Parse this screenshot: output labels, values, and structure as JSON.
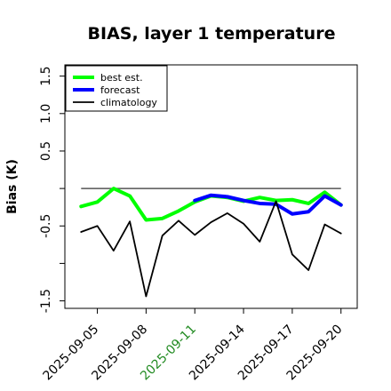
{
  "chart_data": {
    "type": "line",
    "title": "BIAS, layer 1 temperature",
    "ylabel": "Bias (K)",
    "xlabel": "",
    "ylim": [
      -1.6,
      1.65
    ],
    "xlim": [
      "2025-09-03",
      "2025-09-21"
    ],
    "yticks": [
      -1.5,
      -1.0,
      -0.5,
      0.0,
      0.5,
      1.0,
      1.5
    ],
    "yticklabels": [
      "-1.5",
      "",
      "-0.5",
      "",
      "0.5",
      "1.0",
      "1.5"
    ],
    "xticks": [
      "2025-09-05",
      "2025-09-08",
      "2025-09-11",
      "2025-09-14",
      "2025-09-17",
      "2025-09-20"
    ],
    "highlight_tick": "2025-09-11",
    "highlight_color": "#228b22",
    "reference_line": 0.0,
    "legend": {
      "position": "top-left"
    },
    "series": [
      {
        "name": "best est.",
        "color": "#00ff00",
        "x": [
          "2025-09-04",
          "2025-09-05",
          "2025-09-06",
          "2025-09-07",
          "2025-09-08",
          "2025-09-09",
          "2025-09-10",
          "2025-09-11",
          "2025-09-12",
          "2025-09-13",
          "2025-09-14",
          "2025-09-15",
          "2025-09-16",
          "2025-09-17",
          "2025-09-18",
          "2025-09-19",
          "2025-09-20"
        ],
        "y": [
          -0.24,
          -0.18,
          0.0,
          -0.1,
          -0.42,
          -0.4,
          -0.3,
          -0.18,
          -0.1,
          -0.12,
          -0.17,
          -0.12,
          -0.16,
          -0.15,
          -0.2,
          -0.05,
          -0.22
        ]
      },
      {
        "name": "forecast",
        "color": "#0000ff",
        "x": [
          "2025-09-11",
          "2025-09-12",
          "2025-09-13",
          "2025-09-14",
          "2025-09-15",
          "2025-09-16",
          "2025-09-17",
          "2025-09-18",
          "2025-09-19",
          "2025-09-20"
        ],
        "y": [
          -0.16,
          -0.09,
          -0.11,
          -0.16,
          -0.2,
          -0.21,
          -0.34,
          -0.31,
          -0.1,
          -0.22
        ]
      },
      {
        "name": "climatology",
        "color": "#000000",
        "x": [
          "2025-09-04",
          "2025-09-05",
          "2025-09-06",
          "2025-09-07",
          "2025-09-08",
          "2025-09-09",
          "2025-09-10",
          "2025-09-11",
          "2025-09-12",
          "2025-09-13",
          "2025-09-14",
          "2025-09-15",
          "2025-09-16",
          "2025-09-17",
          "2025-09-18",
          "2025-09-19",
          "2025-09-20"
        ],
        "y": [
          -0.58,
          -0.5,
          -0.83,
          -0.44,
          -1.44,
          -0.63,
          -0.43,
          -0.62,
          -0.45,
          -0.33,
          -0.47,
          -0.71,
          -0.17,
          -0.88,
          -1.09,
          -0.48,
          -0.6
        ]
      }
    ]
  }
}
